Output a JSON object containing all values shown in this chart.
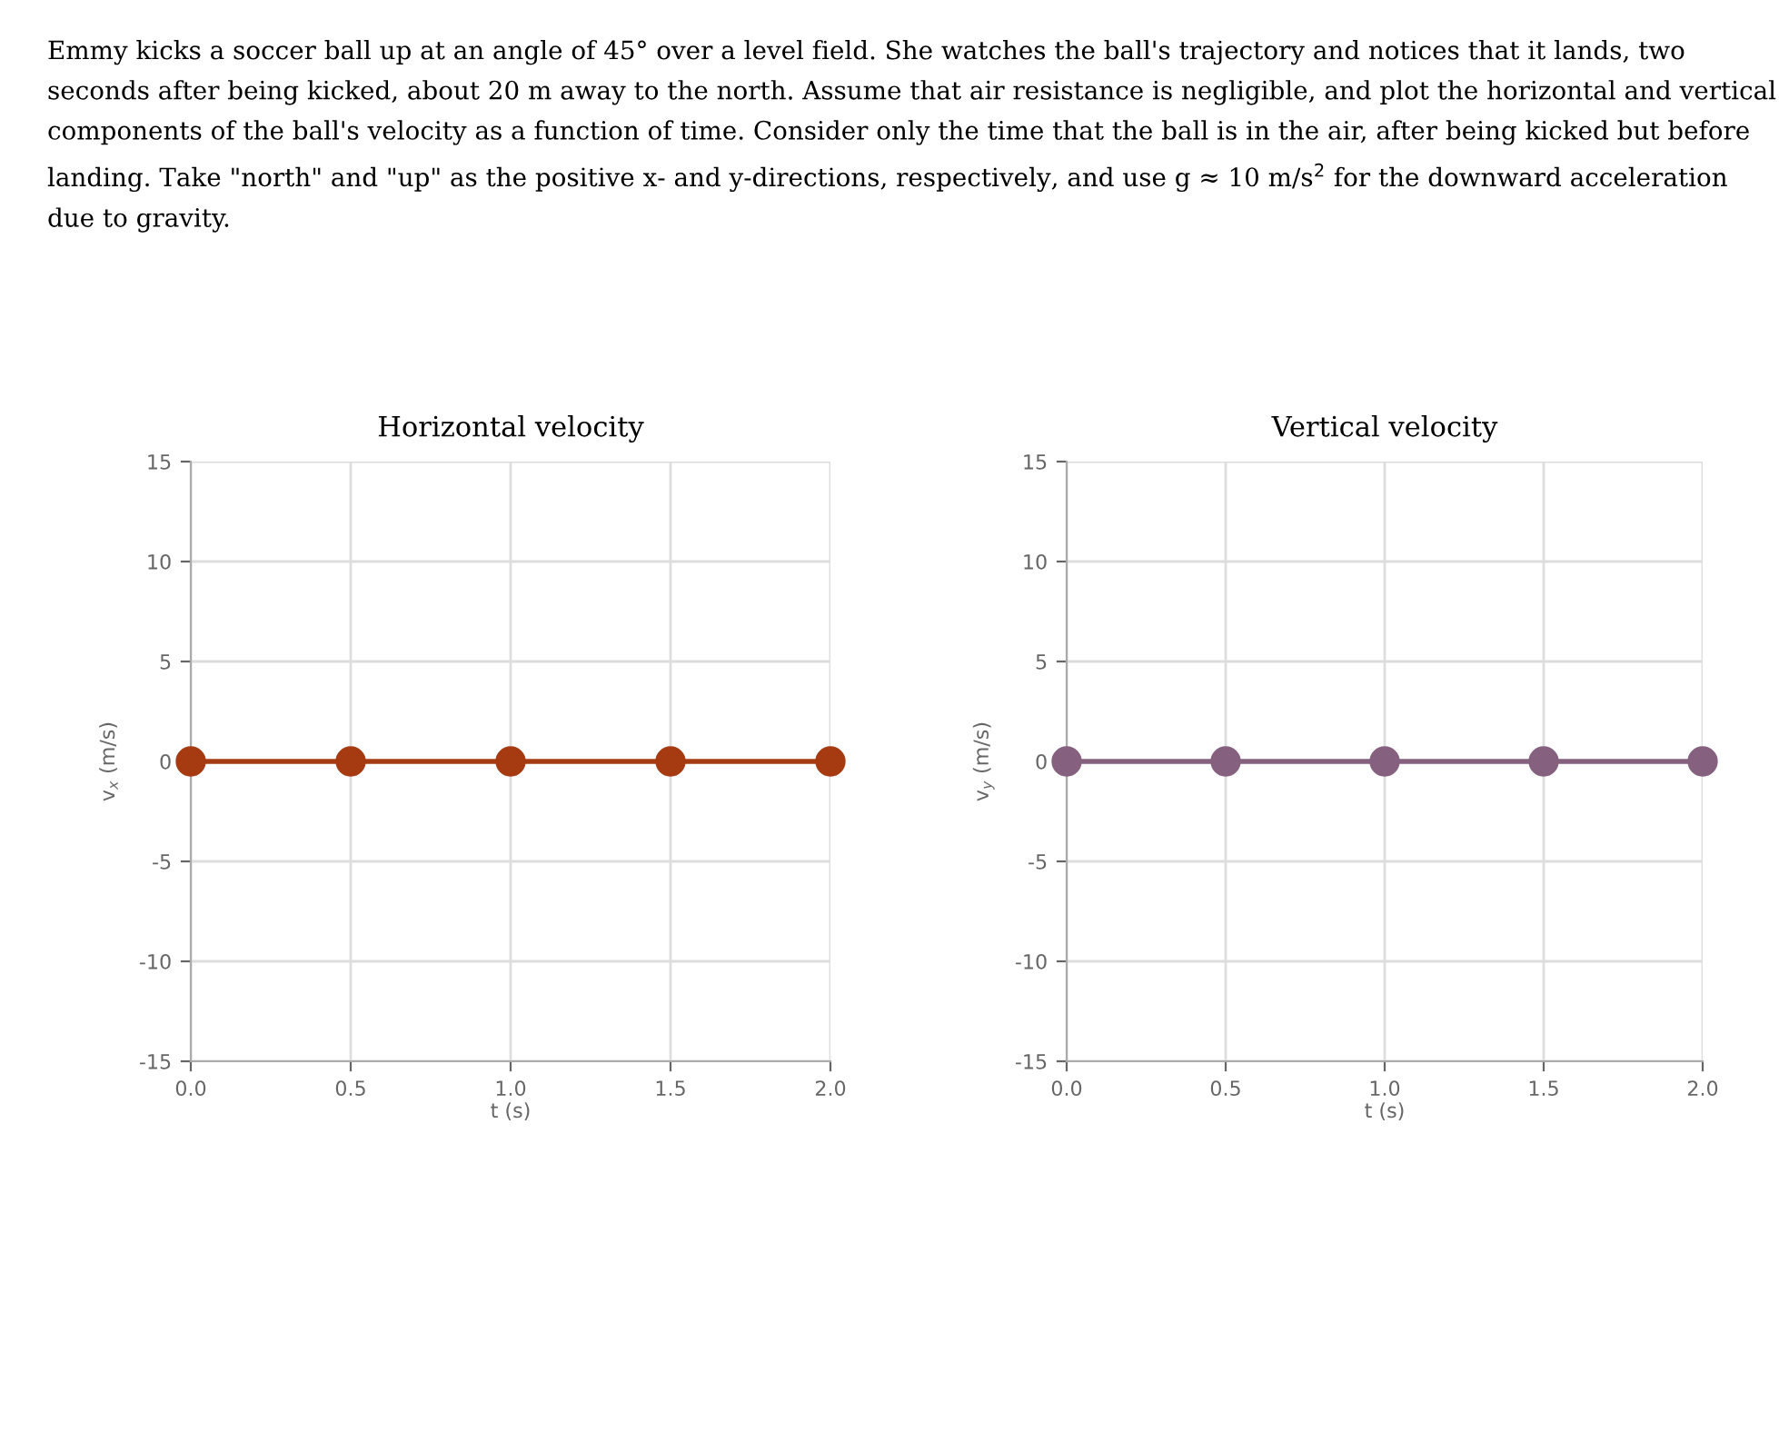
{
  "chart_data": [
    {
      "type": "line",
      "title": "Horizontal velocity",
      "xlabel": "t (s)",
      "ylabel": "v$_{x}$ (m/s)",
      "annotations": [
        "Emmy kicks a soccer ball up at an angle of 45° over a level field. She watches the ball's trajectory and notices that it lands, two seconds after being kicked, about 20 m away to the north. Assume that air resistance is negligible, and plot the horizontal and vertical components of the ball's velocity as a function of time. Consider only the time that the ball is in the air, after being kicked but before landing. Take \"north\" and \"up\" as the positive x- and y-directions, respectively, and use g ≈ 10 m/s$^{2}$ for the downward acceleration due to gravity."
      ],
      "x": [
        0,
        0.5,
        1.0,
        1.5,
        2.0
      ],
      "series": [
        {
          "color": "#a63a10",
          "values": [
            0,
            0,
            0,
            0,
            0
          ]
        }
      ],
      "xlim": [
        0,
        2
      ],
      "xticks": [
        {
          "value": 0,
          "label": "0.0"
        },
        {
          "value": 0.5,
          "label": "0.5"
        },
        {
          "value": 1,
          "label": "1.0"
        },
        {
          "value": 1.5,
          "label": "1.5"
        },
        {
          "value": 2,
          "label": "2.0"
        }
      ],
      "ylim": [
        -15,
        15
      ],
      "yticks": [
        -15,
        -10,
        -5,
        0,
        5,
        10,
        15
      ],
      "grid": true,
      "marker": "circle",
      "line_style": "solid"
    },
    {
      "type": "line",
      "title": "Vertical velocity",
      "xlabel": "t (s)",
      "ylabel": "v$_{y}$ (m/s)",
      "x": [
        0,
        0.5,
        1.0,
        1.5,
        2.0
      ],
      "series": [
        {
          "color": "#86607f",
          "values": [
            0,
            0,
            0,
            0,
            0
          ]
        }
      ],
      "xlim": [
        0,
        2
      ],
      "xticks": [
        {
          "value": 0,
          "label": "0.0"
        },
        {
          "value": 0.5,
          "label": "0.5"
        },
        {
          "value": 1,
          "label": "1.0"
        },
        {
          "value": 1.5,
          "label": "1.5"
        },
        {
          "value": 2,
          "label": "2.0"
        }
      ],
      "ylim": [
        -15,
        15
      ],
      "yticks": [
        -15,
        -10,
        -5,
        0,
        5,
        10,
        15
      ],
      "grid": true,
      "marker": "circle",
      "line_style": "solid"
    }
  ]
}
